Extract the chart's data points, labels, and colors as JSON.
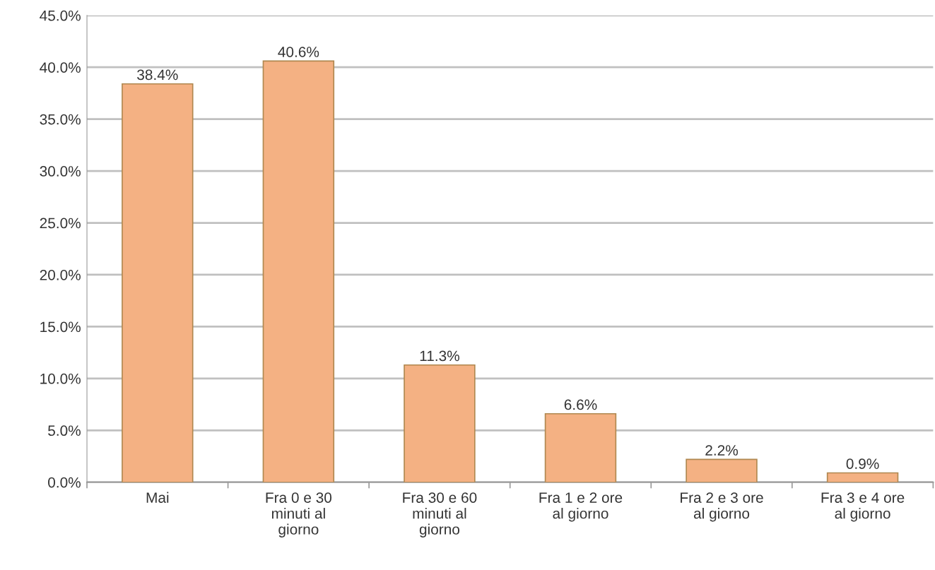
{
  "chart_data": {
    "type": "bar",
    "categories": [
      "Mai",
      "Fra 0 e 30\nminuti al\ngiorno",
      "Fra 30 e 60\nminuti al\ngiorno",
      "Fra 1 e 2 ore\nal giorno",
      "Fra 2 e 3 ore\nal giorno",
      "Fra 3 e 4 ore\nal giorno"
    ],
    "values": [
      38.4,
      40.6,
      11.3,
      6.6,
      2.2,
      0.9
    ],
    "value_labels": [
      "38.4%",
      "40.6%",
      "11.3%",
      "6.6%",
      "2.2%",
      "0.9%"
    ],
    "color": "#f4b183",
    "ylim": [
      0,
      45
    ],
    "yticks": [
      {
        "value": 0,
        "label": "0.0%"
      },
      {
        "value": 5,
        "label": "5.0%"
      },
      {
        "value": 10,
        "label": "10.0%"
      },
      {
        "value": 15,
        "label": "15.0%"
      },
      {
        "value": 20,
        "label": "20.0%"
      },
      {
        "value": 25,
        "label": "25.0%"
      },
      {
        "value": 30,
        "label": "30.0%"
      },
      {
        "value": 35,
        "label": "35.0%"
      },
      {
        "value": 40,
        "label": "40.0%"
      },
      {
        "value": 45,
        "label": "45.0%"
      }
    ],
    "grid": "y"
  }
}
